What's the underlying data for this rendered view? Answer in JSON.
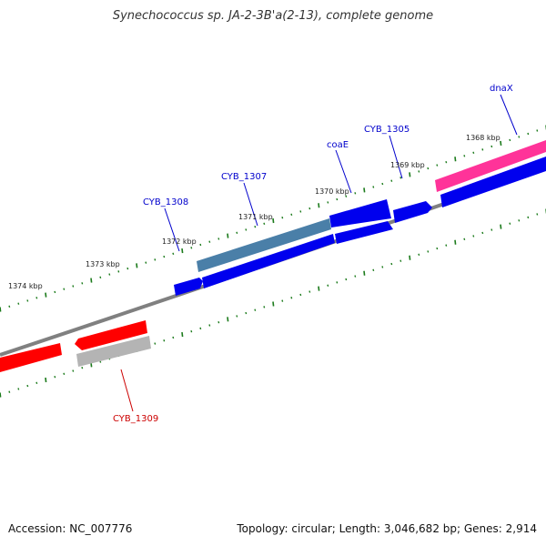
{
  "title": "Synechococcus sp. JA-2-3B'a(2-13), complete genome",
  "accession_text": "Accession: NC_007776",
  "summary_text": "Topology: circular; Length: 3,046,682 bp; Genes: 2,914",
  "colors": {
    "backbone": "#808080",
    "forward_cds": "#0000ee",
    "forward_cds_highlight": "#4a7fa8",
    "reverse_cds": "#ff0000",
    "reverse_gray": "#b4b4b4",
    "pink_feature": "#ff3399",
    "tick": "#1a7a1a",
    "label_blue": "#0000cc",
    "label_red": "#cc0000",
    "callout_line_blue": "#0000cc",
    "callout_line_red": "#cc0000"
  },
  "scale_labels": [
    "1368 kbp",
    "1369 kbp",
    "1370 kbp",
    "1371 kbp",
    "1372 kbp",
    "1373 kbp",
    "1374 kbp"
  ],
  "gene_labels": {
    "dnaX": "dnaX",
    "cyb1305": "CYB_1305",
    "coaE": "coaE",
    "cyb1307": "CYB_1307",
    "cyb1308": "CYB_1308",
    "cyb1309": "CYB_1309"
  }
}
